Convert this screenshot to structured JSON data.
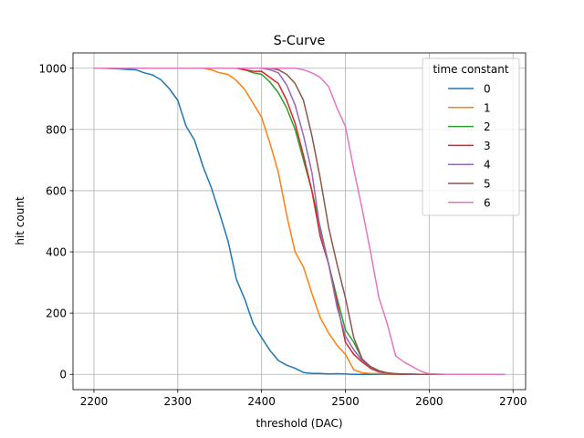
{
  "chart_data": {
    "type": "line",
    "title": "S-Curve",
    "xlabel": "threshold (DAC)",
    "ylabel": "hit count",
    "xlim": [
      2175,
      2715
    ],
    "ylim": [
      -50,
      1050
    ],
    "xticks": [
      2200,
      2300,
      2400,
      2500,
      2600,
      2700
    ],
    "yticks": [
      0,
      200,
      400,
      600,
      800,
      1000
    ],
    "grid": true,
    "legend": {
      "title": "time constant",
      "placement": "top-right"
    },
    "series": [
      {
        "name": "0",
        "color": "#1f77b4",
        "x": [
          2200,
          2210,
          2220,
          2230,
          2240,
          2250,
          2260,
          2270,
          2280,
          2290,
          2300,
          2310,
          2320,
          2330,
          2340,
          2350,
          2360,
          2370,
          2380,
          2390,
          2400,
          2410,
          2420,
          2430,
          2440,
          2450,
          2460,
          2470,
          2480,
          2490,
          2500,
          2510,
          2520,
          2530,
          2540,
          2550,
          2560,
          2570,
          2580,
          2590,
          2600,
          2610,
          2620,
          2630,
          2640,
          2650,
          2660,
          2670,
          2680,
          2690
        ],
        "y": [
          1000,
          1000,
          999,
          998,
          996,
          995,
          985,
          978,
          962,
          933,
          895,
          810,
          765,
          680,
          610,
          525,
          435,
          310,
          245,
          165,
          120,
          78,
          45,
          30,
          20,
          6,
          3,
          3,
          1,
          2,
          1,
          0,
          0,
          0,
          0,
          0,
          0,
          0,
          0,
          0,
          0,
          0,
          0,
          0,
          0,
          0,
          0,
          0,
          0,
          0
        ]
      },
      {
        "name": "1",
        "color": "#ff7f0e",
        "x": [
          2200,
          2210,
          2220,
          2230,
          2240,
          2250,
          2260,
          2270,
          2280,
          2290,
          2300,
          2310,
          2320,
          2330,
          2340,
          2350,
          2360,
          2370,
          2380,
          2390,
          2400,
          2410,
          2420,
          2430,
          2440,
          2450,
          2460,
          2470,
          2480,
          2490,
          2500,
          2510,
          2520,
          2530,
          2540,
          2550,
          2560,
          2570,
          2580,
          2590,
          2600,
          2610,
          2620,
          2630,
          2640,
          2650,
          2660,
          2670,
          2680,
          2690
        ],
        "y": [
          1000,
          1000,
          1000,
          1000,
          1000,
          1000,
          1000,
          1000,
          1000,
          1000,
          1000,
          1000,
          1000,
          1000,
          995,
          985,
          980,
          960,
          930,
          885,
          840,
          755,
          660,
          520,
          400,
          350,
          265,
          185,
          135,
          95,
          65,
          15,
          5,
          3,
          2,
          1,
          0,
          0,
          0,
          0,
          0,
          0,
          0,
          0,
          0,
          0,
          0,
          0,
          0,
          0
        ]
      },
      {
        "name": "2",
        "color": "#2ca02c",
        "x": [
          2200,
          2210,
          2220,
          2230,
          2240,
          2250,
          2260,
          2270,
          2280,
          2290,
          2300,
          2310,
          2320,
          2330,
          2340,
          2350,
          2360,
          2370,
          2380,
          2390,
          2400,
          2410,
          2420,
          2430,
          2440,
          2450,
          2460,
          2470,
          2480,
          2490,
          2500,
          2510,
          2520,
          2530,
          2540,
          2550,
          2560,
          2570,
          2580,
          2590,
          2600,
          2610,
          2620,
          2630,
          2640,
          2650,
          2660,
          2670,
          2680,
          2690
        ],
        "y": [
          1000,
          1000,
          1000,
          1000,
          1000,
          1000,
          1000,
          1000,
          1000,
          1000,
          1000,
          1000,
          1000,
          1000,
          1000,
          1000,
          1000,
          1000,
          995,
          985,
          980,
          955,
          920,
          870,
          800,
          700,
          600,
          480,
          360,
          250,
          145,
          105,
          50,
          20,
          8,
          3,
          1,
          0,
          0,
          0,
          0,
          0,
          0,
          0,
          0,
          0,
          0,
          0,
          0,
          0
        ]
      },
      {
        "name": "3",
        "color": "#d62728",
        "x": [
          2200,
          2210,
          2220,
          2230,
          2240,
          2250,
          2260,
          2270,
          2280,
          2290,
          2300,
          2310,
          2320,
          2330,
          2340,
          2350,
          2360,
          2370,
          2380,
          2390,
          2400,
          2410,
          2420,
          2430,
          2440,
          2450,
          2460,
          2470,
          2480,
          2490,
          2500,
          2510,
          2520,
          2530,
          2540,
          2550,
          2560,
          2570,
          2580,
          2590,
          2600,
          2610,
          2620,
          2630,
          2640,
          2650,
          2660,
          2670,
          2680,
          2690
        ],
        "y": [
          1000,
          1000,
          1000,
          1000,
          1000,
          1000,
          1000,
          1000,
          1000,
          1000,
          1000,
          1000,
          1000,
          1000,
          1000,
          1000,
          1000,
          1000,
          995,
          990,
          990,
          970,
          950,
          895,
          820,
          715,
          600,
          450,
          360,
          235,
          105,
          65,
          40,
          20,
          8,
          4,
          1,
          0,
          0,
          0,
          0,
          0,
          0,
          0,
          0,
          0,
          0,
          0,
          0,
          0
        ]
      },
      {
        "name": "4",
        "color": "#9467bd",
        "x": [
          2200,
          2210,
          2220,
          2230,
          2240,
          2250,
          2260,
          2270,
          2280,
          2290,
          2300,
          2310,
          2320,
          2330,
          2340,
          2350,
          2360,
          2370,
          2380,
          2390,
          2400,
          2410,
          2420,
          2430,
          2440,
          2450,
          2460,
          2470,
          2480,
          2490,
          2500,
          2510,
          2520,
          2530,
          2540,
          2550,
          2560,
          2570,
          2580,
          2590,
          2600,
          2610,
          2620,
          2630,
          2640,
          2650,
          2660,
          2670,
          2680,
          2690
        ],
        "y": [
          1000,
          1000,
          1000,
          1000,
          1000,
          1000,
          1000,
          1000,
          1000,
          1000,
          1000,
          1000,
          1000,
          1000,
          1000,
          1000,
          1000,
          1000,
          1000,
          1000,
          1000,
          995,
          985,
          945,
          880,
          780,
          660,
          470,
          360,
          220,
          125,
          80,
          45,
          25,
          10,
          4,
          2,
          1,
          0,
          0,
          0,
          0,
          0,
          0,
          0,
          0,
          0,
          0,
          0,
          0
        ]
      },
      {
        "name": "5",
        "color": "#8c564b",
        "x": [
          2200,
          2210,
          2220,
          2230,
          2240,
          2250,
          2260,
          2270,
          2280,
          2290,
          2300,
          2310,
          2320,
          2330,
          2340,
          2350,
          2360,
          2370,
          2380,
          2390,
          2400,
          2410,
          2420,
          2430,
          2440,
          2450,
          2460,
          2470,
          2480,
          2490,
          2500,
          2510,
          2520,
          2530,
          2540,
          2550,
          2560,
          2570,
          2580,
          2590,
          2600,
          2610,
          2620,
          2630,
          2640,
          2650,
          2660,
          2670,
          2680,
          2690
        ],
        "y": [
          1000,
          1000,
          1000,
          1000,
          1000,
          1000,
          1000,
          1000,
          1000,
          1000,
          1000,
          1000,
          1000,
          1000,
          1000,
          1000,
          1000,
          1000,
          1000,
          1000,
          1000,
          1000,
          995,
          980,
          950,
          895,
          780,
          640,
          480,
          360,
          250,
          120,
          50,
          25,
          12,
          5,
          2,
          1,
          1,
          0,
          0,
          0,
          0,
          0,
          0,
          0,
          0,
          0,
          0,
          0
        ]
      },
      {
        "name": "6",
        "color": "#e377c2",
        "x": [
          2200,
          2210,
          2220,
          2230,
          2240,
          2250,
          2260,
          2270,
          2280,
          2290,
          2300,
          2310,
          2320,
          2330,
          2340,
          2350,
          2360,
          2370,
          2380,
          2390,
          2400,
          2410,
          2420,
          2430,
          2440,
          2450,
          2460,
          2470,
          2480,
          2490,
          2500,
          2510,
          2520,
          2530,
          2540,
          2550,
          2560,
          2570,
          2580,
          2590,
          2600,
          2610,
          2620,
          2630,
          2640,
          2650,
          2660,
          2670,
          2680,
          2690
        ],
        "y": [
          1000,
          1000,
          1000,
          1000,
          1000,
          1000,
          1000,
          1000,
          1000,
          1000,
          1000,
          1000,
          1000,
          1000,
          1000,
          1000,
          1000,
          1000,
          1000,
          1000,
          1000,
          1000,
          1000,
          1000,
          1000,
          995,
          985,
          970,
          940,
          870,
          810,
          670,
          540,
          400,
          250,
          165,
          60,
          40,
          25,
          10,
          2,
          1,
          0,
          0,
          0,
          0,
          0,
          0,
          0,
          0
        ]
      }
    ]
  }
}
